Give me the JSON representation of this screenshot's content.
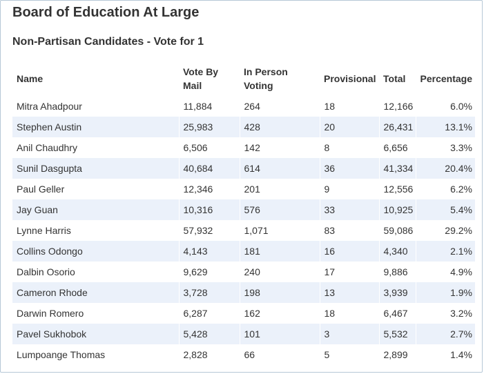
{
  "header": {
    "title": "Board of Education At Large",
    "subtitle": "Non-Partisan Candidates - Vote for 1"
  },
  "table": {
    "columns": {
      "name": "Name",
      "vote_by_mail": "Vote By Mail",
      "in_person": "In Person Voting",
      "provisional": "Provisional",
      "total": "Total",
      "percentage": "Percentage"
    },
    "rows": [
      {
        "name": "Mitra Ahadpour",
        "mail": "11,884",
        "in_person": "264",
        "provisional": "18",
        "total": "12,166",
        "pct": "6.0%"
      },
      {
        "name": "Stephen Austin",
        "mail": "25,983",
        "in_person": "428",
        "provisional": "20",
        "total": "26,431",
        "pct": "13.1%"
      },
      {
        "name": "Anil Chaudhry",
        "mail": "6,506",
        "in_person": "142",
        "provisional": "8",
        "total": "6,656",
        "pct": "3.3%"
      },
      {
        "name": "Sunil Dasgupta",
        "mail": "40,684",
        "in_person": "614",
        "provisional": "36",
        "total": "41,334",
        "pct": "20.4%"
      },
      {
        "name": "Paul Geller",
        "mail": "12,346",
        "in_person": "201",
        "provisional": "9",
        "total": "12,556",
        "pct": "6.2%"
      },
      {
        "name": "Jay Guan",
        "mail": "10,316",
        "in_person": "576",
        "provisional": "33",
        "total": "10,925",
        "pct": "5.4%"
      },
      {
        "name": "Lynne Harris",
        "mail": "57,932",
        "in_person": "1,071",
        "provisional": "83",
        "total": "59,086",
        "pct": "29.2%"
      },
      {
        "name": "Collins Odongo",
        "mail": "4,143",
        "in_person": "181",
        "provisional": "16",
        "total": "4,340",
        "pct": "2.1%"
      },
      {
        "name": "Dalbin Osorio",
        "mail": "9,629",
        "in_person": "240",
        "provisional": "17",
        "total": "9,886",
        "pct": "4.9%"
      },
      {
        "name": "Cameron Rhode",
        "mail": "3,728",
        "in_person": "198",
        "provisional": "13",
        "total": "3,939",
        "pct": "1.9%"
      },
      {
        "name": "Darwin Romero",
        "mail": "6,287",
        "in_person": "162",
        "provisional": "18",
        "total": "6,467",
        "pct": "3.2%"
      },
      {
        "name": "Pavel Sukhobok",
        "mail": "5,428",
        "in_person": "101",
        "provisional": "3",
        "total": "5,532",
        "pct": "2.7%"
      },
      {
        "name": "Lumpoange Thomas",
        "mail": "2,828",
        "in_person": "66",
        "provisional": "5",
        "total": "2,899",
        "pct": "1.4%"
      }
    ]
  }
}
